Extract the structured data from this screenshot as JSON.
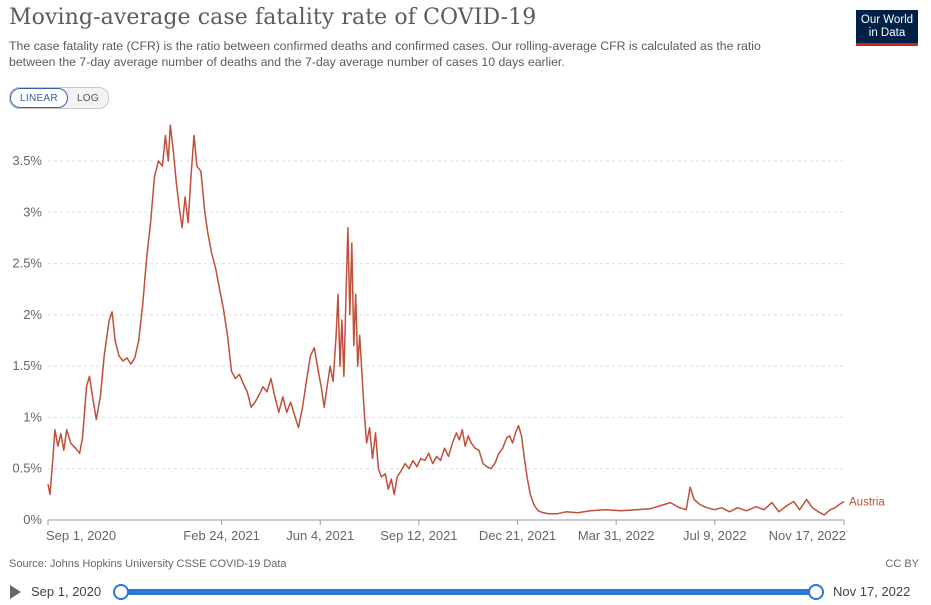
{
  "header": {
    "title": "Moving-average case fatality rate of COVID-19",
    "subtitle": "The case fatality rate (CFR) is the ratio between confirmed deaths and confirmed cases. Our rolling-average CFR is calculated as the ratio between the 7-day average number of deaths and the 7-day average number of cases 10 days earlier.",
    "logo_line1": "Our World",
    "logo_line2": "in Data"
  },
  "scale_toggle": {
    "linear_label": "LINEAR",
    "log_label": "LOG",
    "selected": "LINEAR"
  },
  "footer": {
    "source": "Source: Johns Hopkins University CSSE COVID-19 Data",
    "license": "CC BY"
  },
  "timeline": {
    "start_label": "Sep 1, 2020",
    "end_label": "Nov 17, 2022"
  },
  "chart_data": {
    "type": "line",
    "title": "Moving-average case fatality rate of COVID-19",
    "xlabel": "",
    "ylabel": "",
    "x_range": [
      "2020-09-01",
      "2022-11-17"
    ],
    "ylim": [
      0,
      3.9
    ],
    "y_ticks": [
      0,
      0.5,
      1,
      1.5,
      2,
      2.5,
      3,
      3.5
    ],
    "y_tick_labels": [
      "0%",
      "0.5%",
      "1%",
      "1.5%",
      "2%",
      "2.5%",
      "3%",
      "3.5%"
    ],
    "x_ticks": [
      "2020-09-01",
      "2021-02-24",
      "2021-06-04",
      "2021-09-12",
      "2021-12-21",
      "2022-03-31",
      "2022-07-09",
      "2022-11-17"
    ],
    "x_tick_labels": [
      "Sep 1, 2020",
      "Feb 24, 2021",
      "Jun 4, 2021",
      "Sep 12, 2021",
      "Dec 21, 2021",
      "Mar 31, 2022",
      "Jul 9, 2022",
      "Nov 17, 2022"
    ],
    "grid": "horizontal dashed",
    "series": [
      {
        "name": "Austria",
        "color": "#c0503a",
        "points": [
          [
            "2020-09-01",
            0.35
          ],
          [
            "2020-09-03",
            0.25
          ],
          [
            "2020-09-06",
            0.6
          ],
          [
            "2020-09-08",
            0.88
          ],
          [
            "2020-09-11",
            0.72
          ],
          [
            "2020-09-14",
            0.84
          ],
          [
            "2020-09-17",
            0.68
          ],
          [
            "2020-09-20",
            0.88
          ],
          [
            "2020-09-24",
            0.75
          ],
          [
            "2020-09-29",
            0.7
          ],
          [
            "2020-10-03",
            0.65
          ],
          [
            "2020-10-06",
            0.8
          ],
          [
            "2020-10-10",
            1.3
          ],
          [
            "2020-10-13",
            1.4
          ],
          [
            "2020-10-17",
            1.15
          ],
          [
            "2020-10-20",
            0.98
          ],
          [
            "2020-10-24",
            1.2
          ],
          [
            "2020-10-28",
            1.6
          ],
          [
            "2020-11-02",
            1.95
          ],
          [
            "2020-11-05",
            2.03
          ],
          [
            "2020-11-08",
            1.75
          ],
          [
            "2020-11-12",
            1.6
          ],
          [
            "2020-11-16",
            1.55
          ],
          [
            "2020-11-20",
            1.58
          ],
          [
            "2020-11-24",
            1.52
          ],
          [
            "2020-11-28",
            1.58
          ],
          [
            "2020-12-02",
            1.75
          ],
          [
            "2020-12-06",
            2.1
          ],
          [
            "2020-12-10",
            2.55
          ],
          [
            "2020-12-14",
            2.9
          ],
          [
            "2020-12-18",
            3.35
          ],
          [
            "2020-12-22",
            3.5
          ],
          [
            "2020-12-26",
            3.45
          ],
          [
            "2020-12-29",
            3.75
          ],
          [
            "2021-01-01",
            3.5
          ],
          [
            "2021-01-03",
            3.85
          ],
          [
            "2021-01-06",
            3.6
          ],
          [
            "2021-01-09",
            3.3
          ],
          [
            "2021-01-12",
            3.05
          ],
          [
            "2021-01-15",
            2.85
          ],
          [
            "2021-01-18",
            3.15
          ],
          [
            "2021-01-21",
            2.9
          ],
          [
            "2021-01-24",
            3.35
          ],
          [
            "2021-01-27",
            3.75
          ],
          [
            "2021-01-30",
            3.45
          ],
          [
            "2021-02-03",
            3.4
          ],
          [
            "2021-02-07",
            3.0
          ],
          [
            "2021-02-10",
            2.8
          ],
          [
            "2021-02-14",
            2.6
          ],
          [
            "2021-02-18",
            2.45
          ],
          [
            "2021-02-22",
            2.25
          ],
          [
            "2021-02-26",
            2.05
          ],
          [
            "2021-03-02",
            1.8
          ],
          [
            "2021-03-06",
            1.45
          ],
          [
            "2021-03-10",
            1.38
          ],
          [
            "2021-03-14",
            1.42
          ],
          [
            "2021-03-18",
            1.33
          ],
          [
            "2021-03-22",
            1.25
          ],
          [
            "2021-03-26",
            1.1
          ],
          [
            "2021-03-30",
            1.15
          ],
          [
            "2021-04-03",
            1.22
          ],
          [
            "2021-04-07",
            1.3
          ],
          [
            "2021-04-11",
            1.25
          ],
          [
            "2021-04-15",
            1.38
          ],
          [
            "2021-04-19",
            1.2
          ],
          [
            "2021-04-23",
            1.05
          ],
          [
            "2021-04-27",
            1.2
          ],
          [
            "2021-05-01",
            1.05
          ],
          [
            "2021-05-05",
            1.15
          ],
          [
            "2021-05-09",
            1.02
          ],
          [
            "2021-05-13",
            0.9
          ],
          [
            "2021-05-17",
            1.1
          ],
          [
            "2021-05-21",
            1.35
          ],
          [
            "2021-05-25",
            1.6
          ],
          [
            "2021-05-29",
            1.68
          ],
          [
            "2021-06-02",
            1.45
          ],
          [
            "2021-06-05",
            1.3
          ],
          [
            "2021-06-08",
            1.1
          ],
          [
            "2021-06-11",
            1.3
          ],
          [
            "2021-06-14",
            1.5
          ],
          [
            "2021-06-17",
            1.35
          ],
          [
            "2021-06-20",
            1.78
          ],
          [
            "2021-06-22",
            2.2
          ],
          [
            "2021-06-24",
            1.5
          ],
          [
            "2021-06-26",
            1.95
          ],
          [
            "2021-06-28",
            1.4
          ],
          [
            "2021-06-30",
            2.15
          ],
          [
            "2021-07-02",
            2.85
          ],
          [
            "2021-07-04",
            2.0
          ],
          [
            "2021-07-06",
            2.7
          ],
          [
            "2021-07-08",
            1.7
          ],
          [
            "2021-07-10",
            2.2
          ],
          [
            "2021-07-12",
            1.5
          ],
          [
            "2021-07-14",
            1.8
          ],
          [
            "2021-07-17",
            1.3
          ],
          [
            "2021-07-19",
            1.0
          ],
          [
            "2021-07-21",
            0.75
          ],
          [
            "2021-07-24",
            0.9
          ],
          [
            "2021-07-27",
            0.6
          ],
          [
            "2021-07-30",
            0.85
          ],
          [
            "2021-08-02",
            0.5
          ],
          [
            "2021-08-05",
            0.42
          ],
          [
            "2021-08-09",
            0.45
          ],
          [
            "2021-08-12",
            0.3
          ],
          [
            "2021-08-15",
            0.4
          ],
          [
            "2021-08-18",
            0.25
          ],
          [
            "2021-08-21",
            0.42
          ],
          [
            "2021-08-25",
            0.48
          ],
          [
            "2021-08-29",
            0.55
          ],
          [
            "2021-09-02",
            0.5
          ],
          [
            "2021-09-06",
            0.58
          ],
          [
            "2021-09-10",
            0.52
          ],
          [
            "2021-09-14",
            0.6
          ],
          [
            "2021-09-18",
            0.58
          ],
          [
            "2021-09-22",
            0.65
          ],
          [
            "2021-09-26",
            0.55
          ],
          [
            "2021-09-30",
            0.62
          ],
          [
            "2021-10-04",
            0.58
          ],
          [
            "2021-10-08",
            0.7
          ],
          [
            "2021-10-12",
            0.62
          ],
          [
            "2021-10-16",
            0.75
          ],
          [
            "2021-10-20",
            0.85
          ],
          [
            "2021-10-23",
            0.78
          ],
          [
            "2021-10-26",
            0.88
          ],
          [
            "2021-10-29",
            0.72
          ],
          [
            "2021-11-01",
            0.82
          ],
          [
            "2021-11-04",
            0.75
          ],
          [
            "2021-11-08",
            0.7
          ],
          [
            "2021-11-12",
            0.68
          ],
          [
            "2021-11-16",
            0.55
          ],
          [
            "2021-11-20",
            0.52
          ],
          [
            "2021-11-24",
            0.5
          ],
          [
            "2021-11-28",
            0.55
          ],
          [
            "2021-12-02",
            0.65
          ],
          [
            "2021-12-06",
            0.7
          ],
          [
            "2021-12-10",
            0.8
          ],
          [
            "2021-12-13",
            0.82
          ],
          [
            "2021-12-16",
            0.75
          ],
          [
            "2021-12-19",
            0.85
          ],
          [
            "2021-12-22",
            0.92
          ],
          [
            "2021-12-25",
            0.82
          ],
          [
            "2021-12-28",
            0.6
          ],
          [
            "2021-12-31",
            0.4
          ],
          [
            "2022-01-03",
            0.25
          ],
          [
            "2022-01-07",
            0.14
          ],
          [
            "2022-01-11",
            0.09
          ],
          [
            "2022-01-16",
            0.07
          ],
          [
            "2022-01-22",
            0.06
          ],
          [
            "2022-01-30",
            0.06
          ],
          [
            "2022-02-08",
            0.08
          ],
          [
            "2022-02-20",
            0.07
          ],
          [
            "2022-03-05",
            0.09
          ],
          [
            "2022-03-20",
            0.1
          ],
          [
            "2022-04-05",
            0.09
          ],
          [
            "2022-04-20",
            0.1
          ],
          [
            "2022-05-05",
            0.11
          ],
          [
            "2022-05-15",
            0.14
          ],
          [
            "2022-05-25",
            0.17
          ],
          [
            "2022-06-03",
            0.12
          ],
          [
            "2022-06-10",
            0.1
          ],
          [
            "2022-06-14",
            0.32
          ],
          [
            "2022-06-18",
            0.2
          ],
          [
            "2022-06-24",
            0.15
          ],
          [
            "2022-07-01",
            0.12
          ],
          [
            "2022-07-09",
            0.1
          ],
          [
            "2022-07-16",
            0.12
          ],
          [
            "2022-07-24",
            0.08
          ],
          [
            "2022-08-01",
            0.12
          ],
          [
            "2022-08-10",
            0.09
          ],
          [
            "2022-08-20",
            0.13
          ],
          [
            "2022-08-28",
            0.1
          ],
          [
            "2022-09-05",
            0.17
          ],
          [
            "2022-09-12",
            0.08
          ],
          [
            "2022-09-20",
            0.14
          ],
          [
            "2022-09-27",
            0.18
          ],
          [
            "2022-10-03",
            0.1
          ],
          [
            "2022-10-10",
            0.2
          ],
          [
            "2022-10-16",
            0.12
          ],
          [
            "2022-10-22",
            0.08
          ],
          [
            "2022-10-28",
            0.05
          ],
          [
            "2022-11-03",
            0.1
          ],
          [
            "2022-11-08",
            0.12
          ],
          [
            "2022-11-12",
            0.15
          ],
          [
            "2022-11-17",
            0.18
          ]
        ]
      }
    ]
  }
}
